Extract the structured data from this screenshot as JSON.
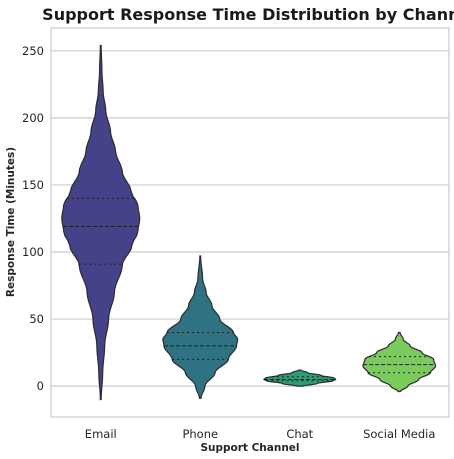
{
  "chart_data": {
    "type": "violin",
    "title": "Support Response Time Distribution by Channel",
    "xlabel": "Support Channel",
    "ylabel": "Response Time (Minutes)",
    "ylim": [
      -23,
      267
    ],
    "yticks": [
      0,
      50,
      100,
      150,
      200,
      250
    ],
    "grid": "horizontal",
    "inner": "quartile",
    "categories": [
      "Email",
      "Phone",
      "Chat",
      "Social Media"
    ],
    "colors": [
      "#46428a",
      "#2f7284",
      "#2e9b78",
      "#7bcb5c"
    ],
    "series": [
      {
        "category": "Email",
        "min": -10,
        "max": 254,
        "q1": 91,
        "median": 119,
        "q3": 140,
        "density": [
          [
            -10,
            0.01
          ],
          [
            10,
            0.05
          ],
          [
            30,
            0.1
          ],
          [
            50,
            0.2
          ],
          [
            70,
            0.35
          ],
          [
            90,
            0.55
          ],
          [
            105,
            0.8
          ],
          [
            115,
            0.95
          ],
          [
            125,
            1.0
          ],
          [
            135,
            0.95
          ],
          [
            145,
            0.78
          ],
          [
            160,
            0.55
          ],
          [
            175,
            0.38
          ],
          [
            190,
            0.25
          ],
          [
            205,
            0.13
          ],
          [
            220,
            0.06
          ],
          [
            235,
            0.03
          ],
          [
            254,
            0.01
          ]
        ]
      },
      {
        "category": "Phone",
        "min": -9,
        "max": 97,
        "q1": 20,
        "median": 30,
        "q3": 40,
        "density": [
          [
            -9,
            0.02
          ],
          [
            0,
            0.12
          ],
          [
            10,
            0.38
          ],
          [
            20,
            0.72
          ],
          [
            30,
            0.93
          ],
          [
            35,
            0.96
          ],
          [
            40,
            0.85
          ],
          [
            50,
            0.5
          ],
          [
            60,
            0.3
          ],
          [
            70,
            0.15
          ],
          [
            80,
            0.06
          ],
          [
            97,
            0.01
          ]
        ]
      },
      {
        "category": "Chat",
        "min": 0,
        "max": 12,
        "q1": 4,
        "median": 5,
        "q3": 7,
        "density": [
          [
            0,
            0.08
          ],
          [
            2,
            0.45
          ],
          [
            4,
            0.85
          ],
          [
            5,
            0.92
          ],
          [
            6,
            0.88
          ],
          [
            8,
            0.55
          ],
          [
            10,
            0.2
          ],
          [
            12,
            0.03
          ]
        ]
      },
      {
        "category": "Social Media",
        "min": -4,
        "max": 40,
        "q1": 10,
        "median": 16,
        "q3": 22,
        "density": [
          [
            -4,
            0.03
          ],
          [
            0,
            0.22
          ],
          [
            5,
            0.5
          ],
          [
            10,
            0.8
          ],
          [
            15,
            0.93
          ],
          [
            20,
            0.88
          ],
          [
            25,
            0.58
          ],
          [
            30,
            0.28
          ],
          [
            35,
            0.1
          ],
          [
            40,
            0.02
          ]
        ]
      }
    ]
  }
}
